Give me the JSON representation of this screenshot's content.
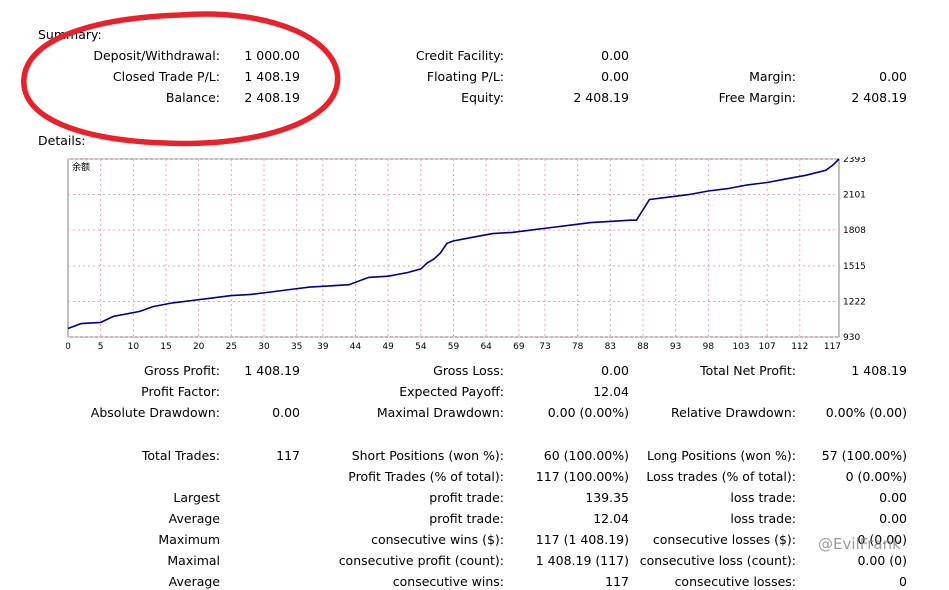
{
  "summary": {
    "title": "Summary:",
    "deposit_label": "Deposit/Withdrawal:",
    "deposit_value": "1 000.00",
    "closed_pl_label": "Closed Trade P/L:",
    "closed_pl_value": "1 408.19",
    "balance_label": "Balance:",
    "balance_value": "2 408.19",
    "credit_label": "Credit Facility:",
    "credit_value": "0.00",
    "floating_label": "Floating P/L:",
    "floating_value": "0.00",
    "equity_label": "Equity:",
    "equity_value": "2 408.19",
    "margin_label": "Margin:",
    "margin_value": "0.00",
    "free_margin_label": "Free Margin:",
    "free_margin_value": "2 408.19"
  },
  "details": {
    "title": "Details:",
    "gross_profit_label": "Gross Profit:",
    "gross_profit_value": "1 408.19",
    "gross_loss_label": "Gross Loss:",
    "gross_loss_value": "0.00",
    "total_net_label": "Total Net Profit:",
    "total_net_value": "1 408.19",
    "profit_factor_label": "Profit Factor:",
    "expected_payoff_label": "Expected Payoff:",
    "expected_payoff_value": "12.04",
    "abs_dd_label": "Absolute Drawdown:",
    "abs_dd_value": "0.00",
    "max_dd_label": "Maximal Drawdown:",
    "max_dd_value": "0.00 (0.00%)",
    "rel_dd_label": "Relative Drawdown:",
    "rel_dd_value": "0.00% (0.00)",
    "total_trades_label": "Total Trades:",
    "total_trades_value": "117",
    "short_label": "Short Positions (won %):",
    "short_value": "60 (100.00%)",
    "long_label": "Long Positions (won %):",
    "long_value": "57 (100.00%)",
    "profit_trades_label": "Profit Trades (% of total):",
    "profit_trades_value": "117 (100.00%)",
    "loss_trades_label": "Loss trades (% of total):",
    "loss_trades_value": "0 (0.00%)",
    "largest_label": "Largest",
    "largest_profit_label": "profit trade:",
    "largest_profit_value": "139.35",
    "largest_loss_label": "loss trade:",
    "largest_loss_value": "0.00",
    "average_label": "Average",
    "average_profit_label": "profit trade:",
    "average_profit_value": "12.04",
    "average_loss_label": "loss trade:",
    "average_loss_value": "0.00",
    "maximum_label": "Maximum",
    "max_cons_wins_label": "consecutive wins ($):",
    "max_cons_wins_value": "117 (1 408.19)",
    "max_cons_losses_label": "consecutive losses ($):",
    "max_cons_losses_value": "0 (0.00)",
    "maximal_label": "Maximal",
    "maximal_profit_label": "consecutive profit (count):",
    "maximal_profit_value": "1 408.19 (117)",
    "maximal_loss_label": "consecutive loss (count):",
    "maximal_loss_value": "0.00 (0)",
    "average2_label": "Average",
    "avg_cons_wins_label": "consecutive wins:",
    "avg_cons_wins_value": "117",
    "avg_cons_losses_label": "consecutive losses:",
    "avg_cons_losses_value": "0"
  },
  "watermark": "@EvilFrank",
  "colors": {
    "line": "#00008b",
    "highlight": "#e8222a",
    "grid": "#e6a0b8"
  },
  "chart_data": {
    "type": "line",
    "title": "余额",
    "x_ticks": [
      "0",
      "5",
      "10",
      "15",
      "20",
      "25",
      "30",
      "35",
      "39",
      "44",
      "49",
      "54",
      "59",
      "64",
      "69",
      "73",
      "78",
      "83",
      "88",
      "93",
      "98",
      "103",
      "107",
      "112",
      "117"
    ],
    "y_ticks": [
      "2393",
      "2101",
      "1808",
      "1515",
      "1222",
      "930"
    ],
    "ylim": [
      930,
      2393
    ],
    "xlim": [
      0,
      118
    ],
    "x": [
      0,
      2,
      5,
      7,
      9,
      11,
      13,
      16,
      19,
      22,
      25,
      28,
      31,
      34,
      37,
      40,
      43,
      46,
      49,
      52,
      54,
      55,
      56,
      57,
      58,
      59,
      60,
      62,
      65,
      68,
      71,
      74,
      77,
      80,
      83,
      86,
      87,
      89,
      92,
      95,
      98,
      101,
      104,
      107,
      110,
      113,
      116,
      117,
      118
    ],
    "values": [
      1000,
      1040,
      1050,
      1100,
      1120,
      1140,
      1180,
      1210,
      1230,
      1250,
      1270,
      1280,
      1300,
      1320,
      1340,
      1350,
      1360,
      1420,
      1430,
      1460,
      1490,
      1540,
      1570,
      1620,
      1700,
      1720,
      1730,
      1750,
      1780,
      1790,
      1810,
      1830,
      1850,
      1870,
      1880,
      1890,
      1890,
      2060,
      2080,
      2100,
      2130,
      2150,
      2180,
      2200,
      2230,
      2260,
      2300,
      2340,
      2393
    ]
  }
}
